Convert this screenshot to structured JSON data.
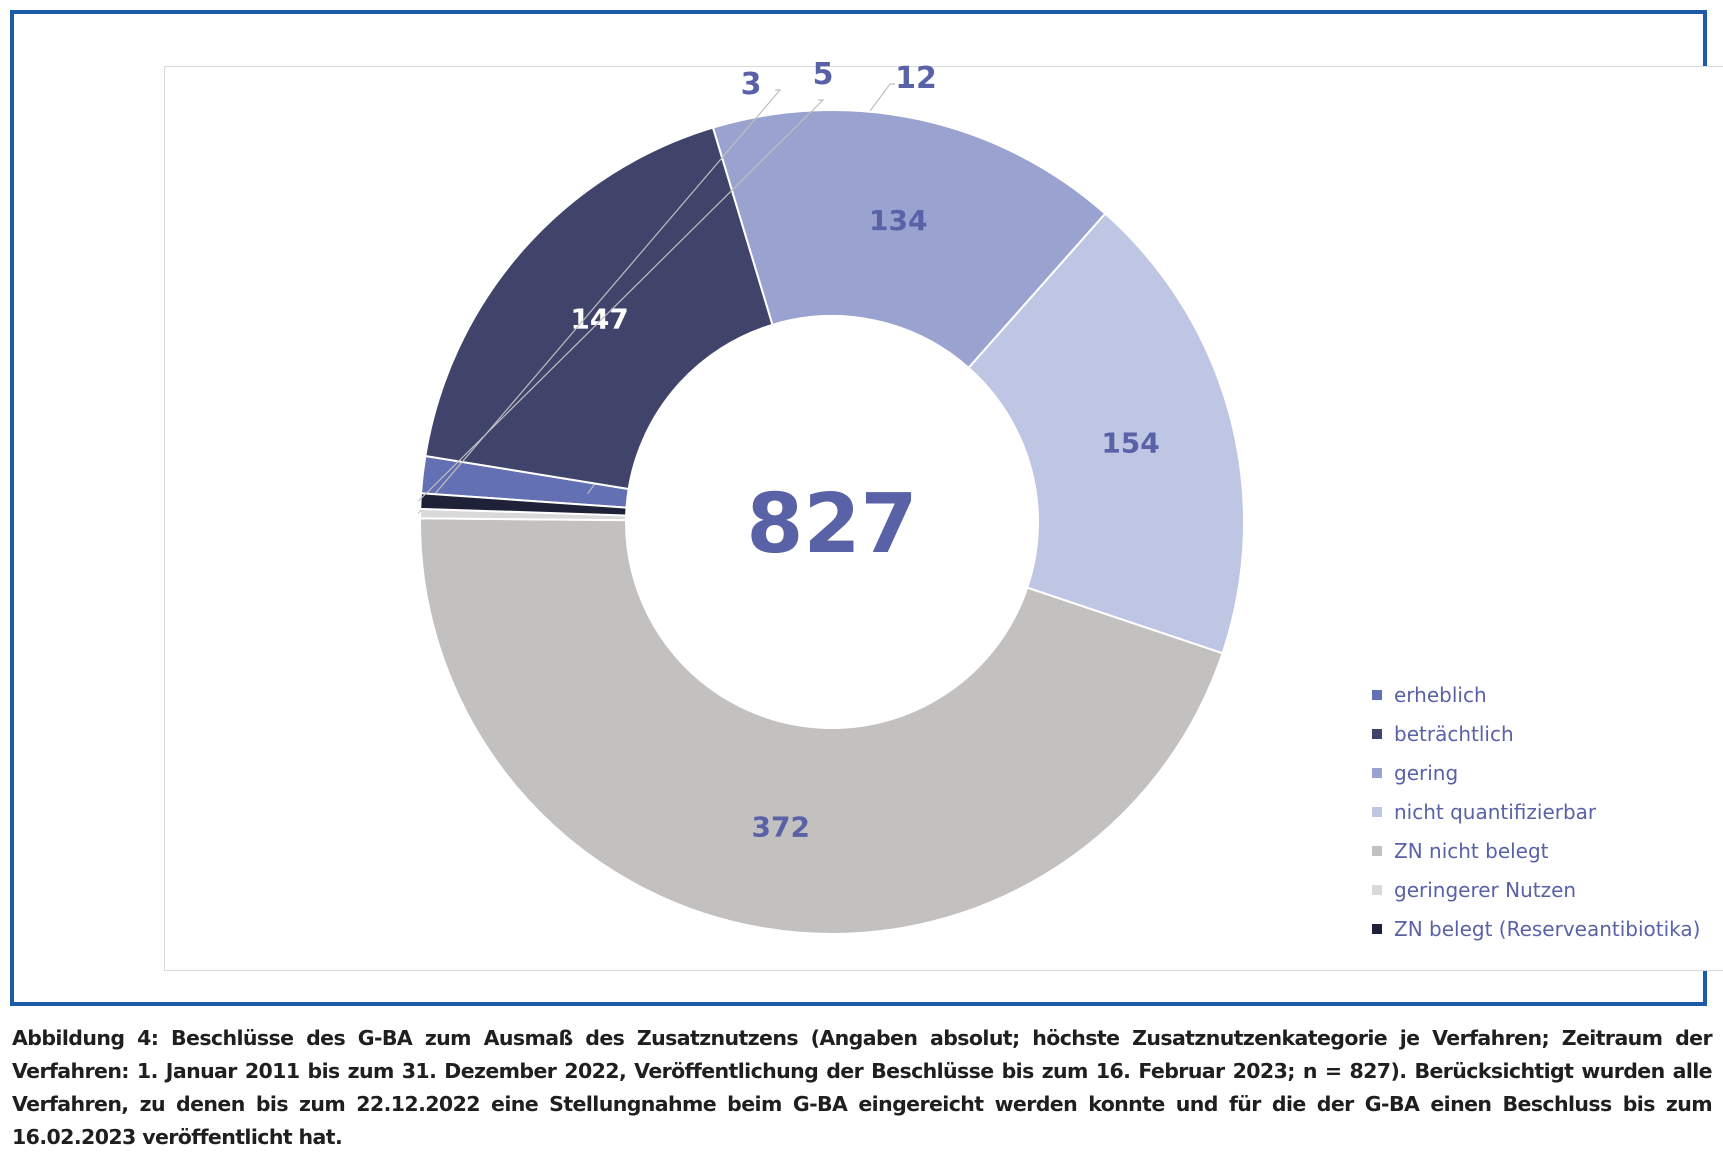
{
  "chart_data": {
    "type": "pie",
    "donut": true,
    "center_label": "827",
    "slices": [
      {
        "label": "erheblich",
        "value": 12,
        "value_label": "12",
        "color": "#6470b4"
      },
      {
        "label": "beträchtlich",
        "value": 147,
        "value_label": "147",
        "color": "#40436a"
      },
      {
        "label": "gering",
        "value": 134,
        "value_label": "134",
        "color": "#9aa2cf"
      },
      {
        "label": "nicht quantifizierbar",
        "value": 154,
        "value_label": "154",
        "color": "#bfc6e4"
      },
      {
        "label": "ZN nicht belegt",
        "value": 372,
        "value_label": "372",
        "color": "#c3c1bf"
      },
      {
        "label": "geringerer Nutzen",
        "value": 3,
        "value_label": "3",
        "color": "#d9d9d9"
      },
      {
        "label": "ZN belegt (Reserveantibiotika)",
        "value": 5,
        "value_label": "5",
        "color": "#1e2138"
      }
    ],
    "legend_position": "right",
    "label_color_dark": "#5962a6",
    "label_color_light": "#ffffff"
  },
  "caption": "Abbildung 4: Beschlüsse des G-BA zum Ausmaß des Zusatznutzens (Angaben absolut; höchste Zusatznutzenkategorie je Verfahren; Zeitraum der Verfahren: 1. Januar 2011 bis zum 31. Dezember 2022, Veröffentlichung der Beschlüsse bis zum 16. Februar 2023; n = 827). Berücksichtigt wurden alle Verfahren, zu denen bis zum 22.12.2022 eine Stellungnahme beim G-BA eingereicht werden konnte und für die der G-BA einen Beschluss bis zum 16.02.2023 veröffentlicht hat.",
  "frame_color": "#1d5aa8"
}
